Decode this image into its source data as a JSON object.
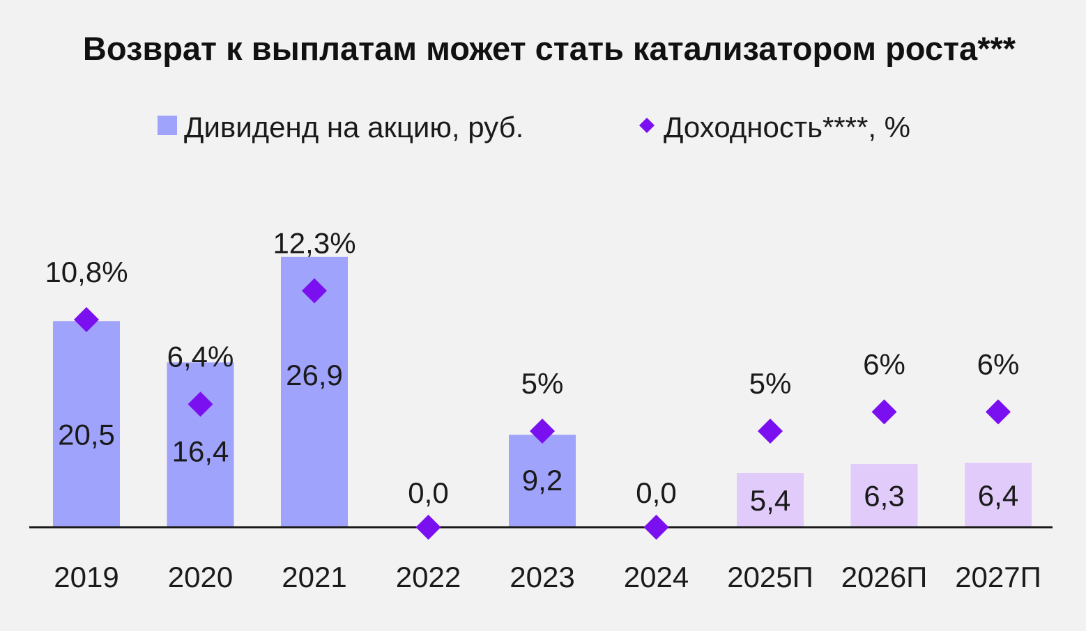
{
  "chart_data": {
    "type": "bar",
    "title": "Возврат к выплатам может стать катализатором роста***",
    "categories": [
      "2019",
      "2020",
      "2021",
      "2022",
      "2023",
      "2024",
      "2025П",
      "2026П",
      "2027П"
    ],
    "series": [
      {
        "name": "Дивиденд на акцию, руб.",
        "kind": "bar",
        "values": [
          20.5,
          16.4,
          26.9,
          0.0,
          9.2,
          0.0,
          5.4,
          6.3,
          6.4
        ],
        "labels": [
          "20,5",
          "16,4",
          "26,9",
          "0,0",
          "9,2",
          "0,0",
          "5,4",
          "6,3",
          "6,4"
        ],
        "forecast": [
          false,
          false,
          false,
          false,
          false,
          false,
          true,
          true,
          true
        ]
      },
      {
        "name": "Доходность****, %",
        "kind": "scatter",
        "values": [
          10.8,
          6.4,
          12.3,
          0,
          5,
          0,
          5,
          6,
          6
        ],
        "labels": [
          "10,8%",
          "6,4%",
          "12,3%",
          "",
          "5%",
          "",
          "5%",
          "6%",
          "6%"
        ]
      }
    ],
    "legend": {
      "position": "top-center",
      "items": [
        {
          "label": "Дивиденд на акцию, руб.",
          "marker": "square",
          "color": "#a0a3fb"
        },
        {
          "label": "Доходность****, %",
          "marker": "diamond",
          "color": "#7a0ff0"
        }
      ]
    },
    "colors": {
      "bar": "#a0a3fb",
      "bar_forecast": "#e0cbfb",
      "marker": "#7a0ff0",
      "axis": "#1a1a1a",
      "background": "#f2f2f2"
    },
    "grid": false
  }
}
